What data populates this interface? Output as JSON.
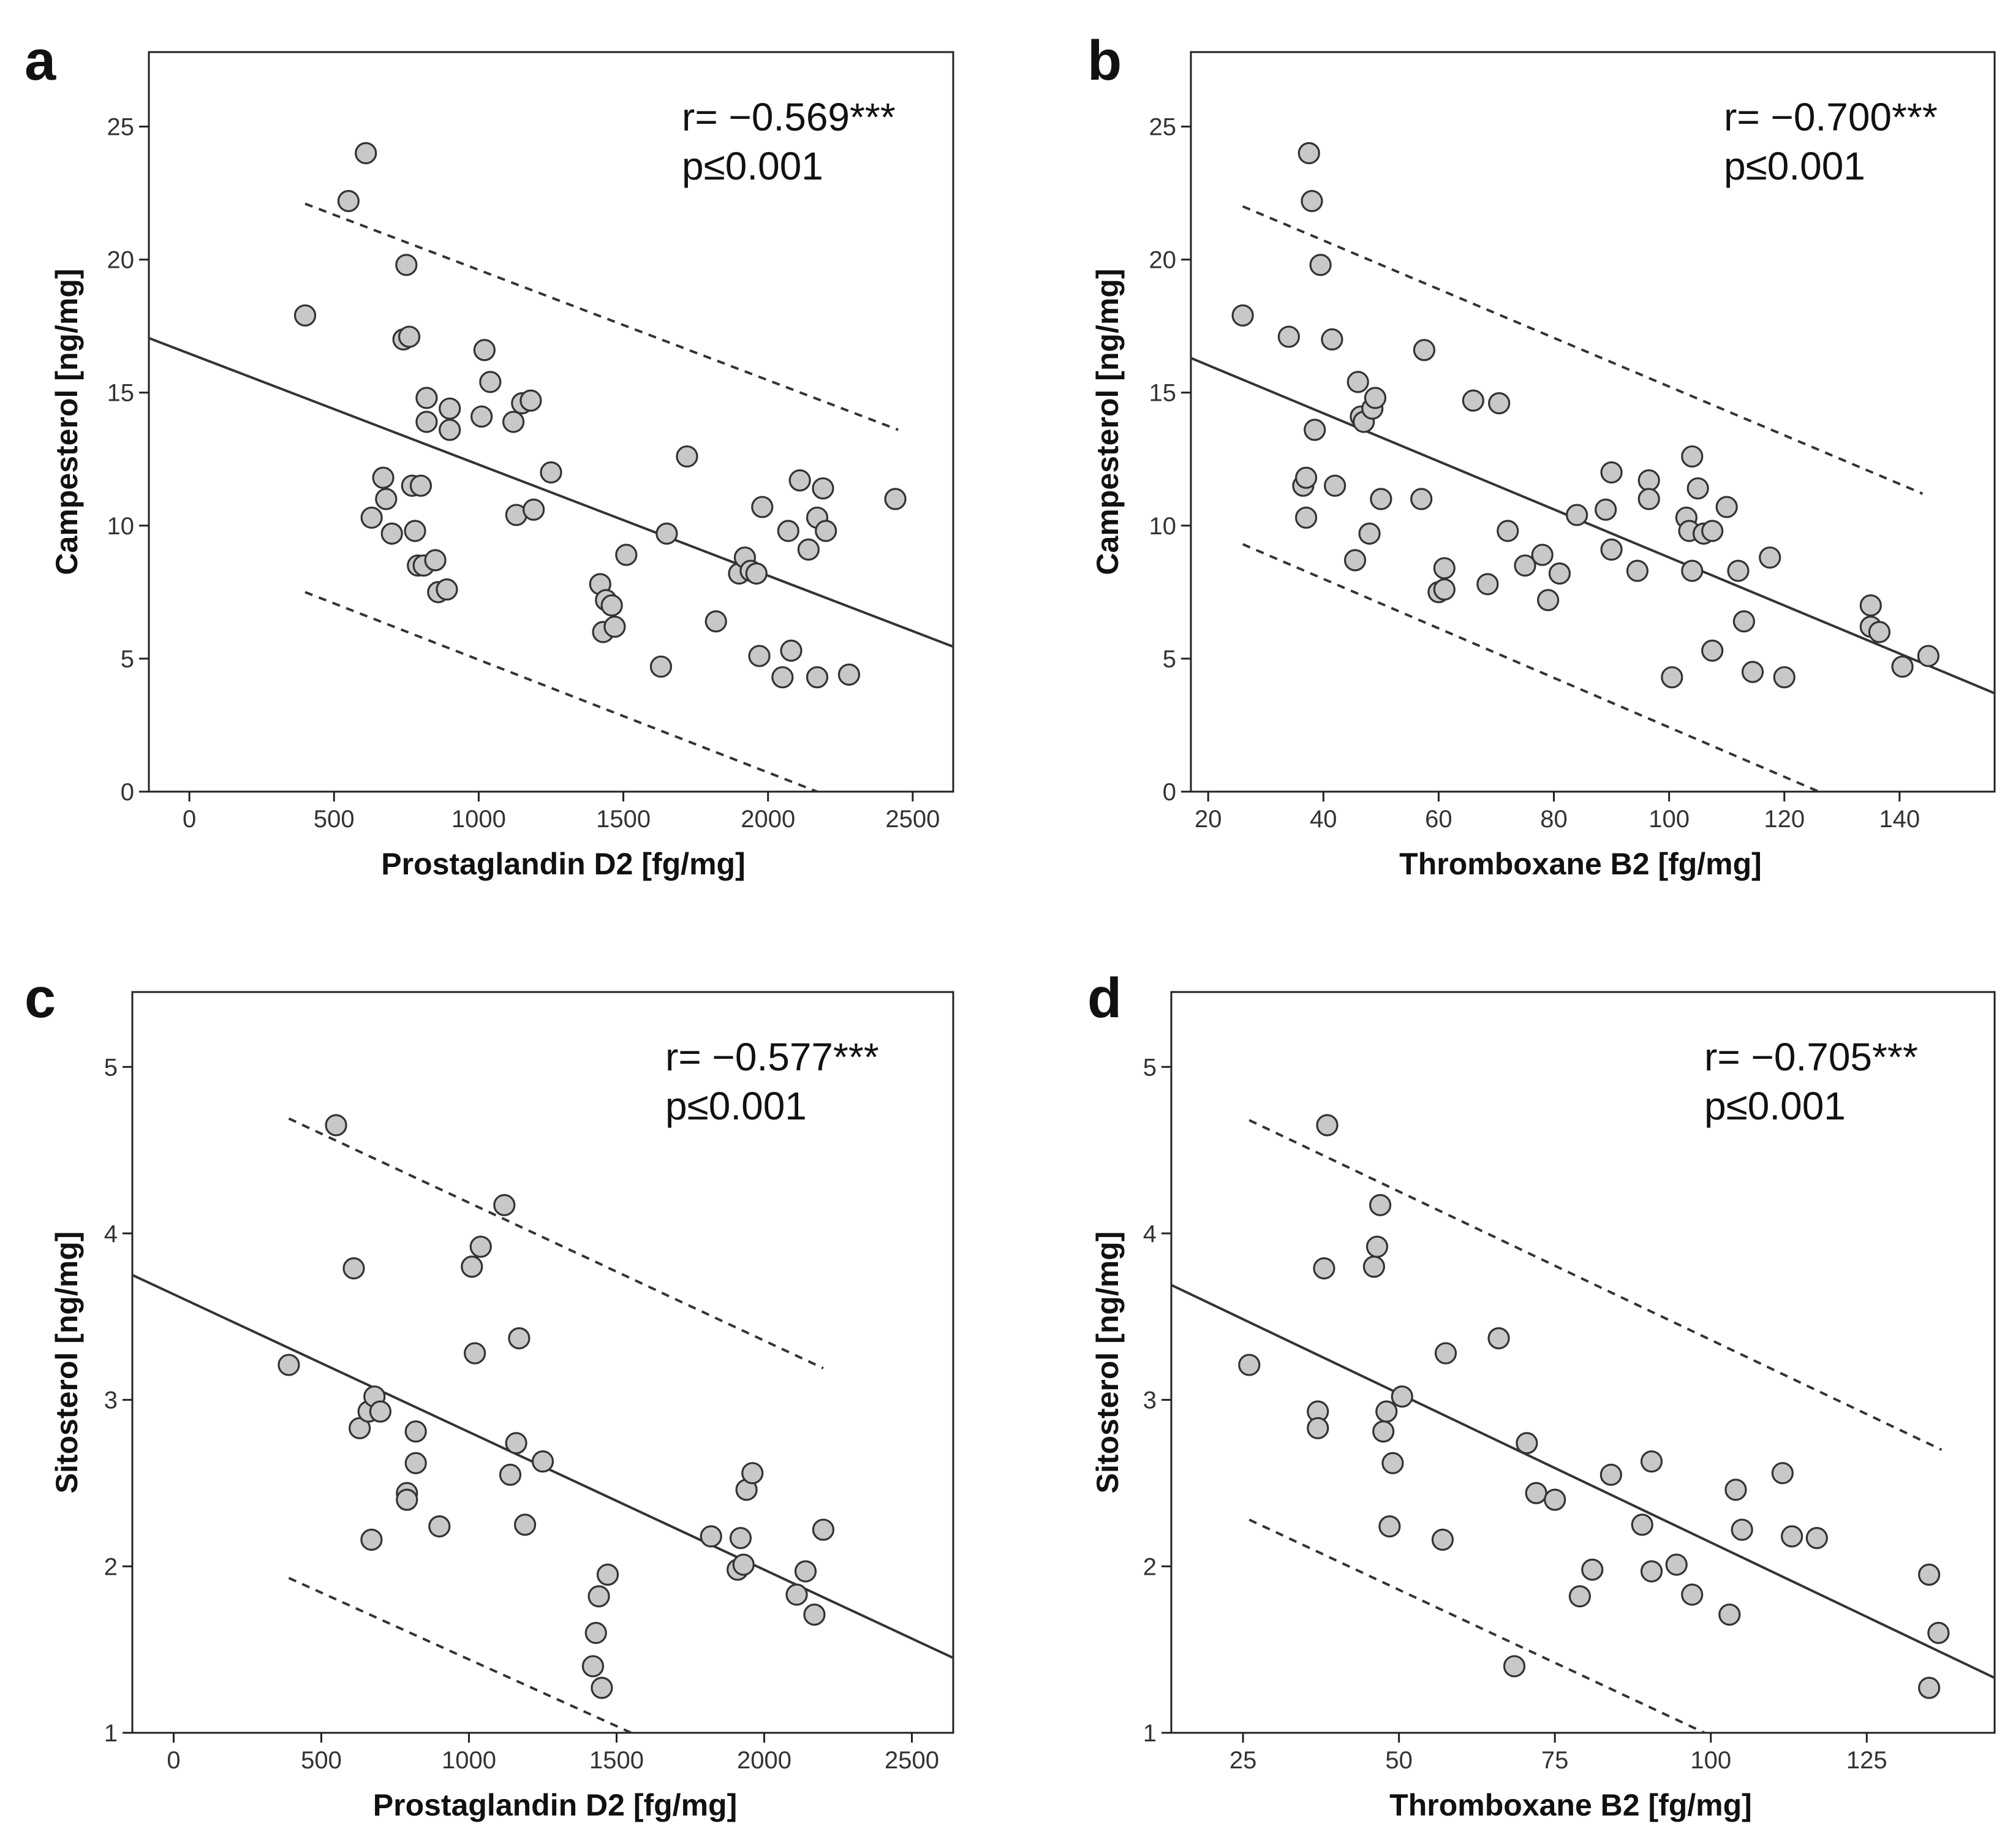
{
  "colors": {
    "point_fill": "#c8c8c8",
    "point_stroke": "#333333",
    "line": "#333333",
    "text": "#111111"
  },
  "chart_data": [
    {
      "panel": "a",
      "type": "scatter",
      "r_text": "r= −0.569***",
      "p_text": "p≤0.001",
      "xlabel": "Prostaglandin D2 [fg/mg]",
      "ylabel": "Campesterol [ng/mg]",
      "xlim": [
        -140,
        2640
      ],
      "ylim": [
        0,
        27.8
      ],
      "xticks": [
        0,
        500,
        1000,
        1500,
        2000,
        2500
      ],
      "yticks": [
        0,
        5,
        10,
        15,
        20,
        25
      ],
      "fit_line": [
        [
          -140,
          17.05
        ],
        [
          2640,
          5.45
        ]
      ],
      "upper_band": [
        [
          400,
          22.1
        ],
        [
          2450,
          13.6
        ]
      ],
      "lower_band": [
        [
          400,
          7.5
        ],
        [
          2170,
          0
        ]
      ],
      "points": [
        [
          400,
          17.9
        ],
        [
          550,
          22.2
        ],
        [
          610,
          24.0
        ],
        [
          630,
          10.3
        ],
        [
          670,
          11.8
        ],
        [
          680,
          11.0
        ],
        [
          700,
          9.7
        ],
        [
          740,
          17.0
        ],
        [
          750,
          19.8
        ],
        [
          760,
          17.1
        ],
        [
          770,
          11.5
        ],
        [
          780,
          9.8
        ],
        [
          790,
          8.5
        ],
        [
          800,
          11.5
        ],
        [
          810,
          8.5
        ],
        [
          820,
          14.8
        ],
        [
          820,
          13.9
        ],
        [
          850,
          8.7
        ],
        [
          860,
          7.5
        ],
        [
          890,
          7.6
        ],
        [
          900,
          14.4
        ],
        [
          900,
          13.6
        ],
        [
          1010,
          14.1
        ],
        [
          1020,
          16.6
        ],
        [
          1040,
          15.4
        ],
        [
          1120,
          13.9
        ],
        [
          1130,
          10.4
        ],
        [
          1150,
          14.6
        ],
        [
          1180,
          14.7
        ],
        [
          1190,
          10.6
        ],
        [
          1250,
          12.0
        ],
        [
          1420,
          7.8
        ],
        [
          1430,
          6.0
        ],
        [
          1440,
          7.2
        ],
        [
          1460,
          7.0
        ],
        [
          1470,
          6.2
        ],
        [
          1510,
          8.9
        ],
        [
          1630,
          4.7
        ],
        [
          1650,
          9.7
        ],
        [
          1720,
          12.6
        ],
        [
          1820,
          6.4
        ],
        [
          1900,
          8.2
        ],
        [
          1920,
          8.8
        ],
        [
          1940,
          8.3
        ],
        [
          1960,
          8.2
        ],
        [
          1970,
          5.1
        ],
        [
          1980,
          10.7
        ],
        [
          2050,
          4.3
        ],
        [
          2070,
          9.8
        ],
        [
          2080,
          5.3
        ],
        [
          2110,
          11.7
        ],
        [
          2140,
          9.1
        ],
        [
          2170,
          10.3
        ],
        [
          2170,
          4.3
        ],
        [
          2190,
          11.4
        ],
        [
          2200,
          9.8
        ],
        [
          2280,
          4.4
        ],
        [
          2440,
          11.0
        ]
      ]
    },
    {
      "panel": "b",
      "type": "scatter",
      "r_text": "r= −0.700***",
      "p_text": "p≤0.001",
      "xlabel": "Thromboxane B2 [fg/mg]",
      "ylabel": "Campesterol [ng/mg]",
      "xlim": [
        17,
        156.5
      ],
      "ylim": [
        0,
        27.8
      ],
      "xticks": [
        20,
        40,
        60,
        80,
        100,
        120,
        140
      ],
      "yticks": [
        0,
        5,
        10,
        15,
        20,
        25
      ],
      "fit_line": [
        [
          17,
          16.3
        ],
        [
          156.5,
          3.7
        ]
      ],
      "upper_band": [
        [
          26,
          22.0
        ],
        [
          144,
          11.2
        ]
      ],
      "lower_band": [
        [
          26,
          9.3
        ],
        [
          126,
          0
        ]
      ],
      "points": [
        [
          26,
          17.9
        ],
        [
          34,
          17.1
        ],
        [
          36.5,
          11.5
        ],
        [
          37,
          10.3
        ],
        [
          37,
          11.8
        ],
        [
          37.5,
          24.0
        ],
        [
          38,
          22.2
        ],
        [
          38.5,
          13.6
        ],
        [
          39.5,
          19.8
        ],
        [
          41.5,
          17.0
        ],
        [
          42,
          11.5
        ],
        [
          45.5,
          8.7
        ],
        [
          46,
          15.4
        ],
        [
          46.5,
          14.1
        ],
        [
          47,
          13.9
        ],
        [
          48,
          9.7
        ],
        [
          48.5,
          14.4
        ],
        [
          49,
          14.8
        ],
        [
          50,
          11.0
        ],
        [
          57,
          11.0
        ],
        [
          57.5,
          16.6
        ],
        [
          60,
          7.5
        ],
        [
          61,
          8.4
        ],
        [
          61,
          7.6
        ],
        [
          66,
          14.7
        ],
        [
          68.5,
          7.8
        ],
        [
          70.5,
          14.6
        ],
        [
          72,
          9.8
        ],
        [
          75,
          8.5
        ],
        [
          78,
          8.9
        ],
        [
          79,
          7.2
        ],
        [
          81,
          8.2
        ],
        [
          84,
          10.4
        ],
        [
          89,
          10.6
        ],
        [
          90,
          12.0
        ],
        [
          90,
          9.1
        ],
        [
          94.5,
          8.3
        ],
        [
          96.5,
          11.7
        ],
        [
          96.5,
          11.0
        ],
        [
          100.5,
          4.3
        ],
        [
          103,
          10.3
        ],
        [
          103.5,
          9.8
        ],
        [
          104,
          12.6
        ],
        [
          104,
          8.3
        ],
        [
          105,
          11.4
        ],
        [
          106,
          9.7
        ],
        [
          107.5,
          9.8
        ],
        [
          107.5,
          5.3
        ],
        [
          110,
          10.7
        ],
        [
          112,
          8.3
        ],
        [
          113,
          6.4
        ],
        [
          114.5,
          4.5
        ],
        [
          117.5,
          8.8
        ],
        [
          120,
          4.3
        ],
        [
          135,
          7.0
        ],
        [
          135,
          6.2
        ],
        [
          136.5,
          6.0
        ],
        [
          140.5,
          4.7
        ],
        [
          145,
          5.1
        ]
      ]
    },
    {
      "panel": "c",
      "type": "scatter",
      "r_text": "r= −0.577***",
      "p_text": "p≤0.001",
      "xlabel": "Prostaglandin D2 [fg/mg]",
      "ylabel": "Sitosterol [ng/mg]",
      "xlim": [
        -140,
        2640
      ],
      "ylim": [
        1,
        5.45
      ],
      "xticks": [
        0,
        500,
        1000,
        1500,
        2000,
        2500
      ],
      "yticks": [
        1,
        2,
        3,
        4,
        5
      ],
      "fit_line": [
        [
          -140,
          3.75
        ],
        [
          2640,
          1.45
        ]
      ],
      "upper_band": [
        [
          390,
          4.69
        ],
        [
          2200,
          3.19
        ]
      ],
      "lower_band": [
        [
          390,
          1.93
        ],
        [
          1550,
          1
        ]
      ],
      "points": [
        [
          390,
          3.21
        ],
        [
          550,
          4.65
        ],
        [
          610,
          3.79
        ],
        [
          630,
          2.83
        ],
        [
          660,
          2.93
        ],
        [
          670,
          2.16
        ],
        [
          680,
          3.02
        ],
        [
          700,
          2.93
        ],
        [
          790,
          2.44
        ],
        [
          790,
          2.4
        ],
        [
          820,
          2.81
        ],
        [
          820,
          2.62
        ],
        [
          900,
          2.24
        ],
        [
          1010,
          3.8
        ],
        [
          1020,
          3.28
        ],
        [
          1040,
          3.92
        ],
        [
          1120,
          4.17
        ],
        [
          1140,
          2.55
        ],
        [
          1160,
          2.74
        ],
        [
          1170,
          3.37
        ],
        [
          1190,
          2.25
        ],
        [
          1250,
          2.63
        ],
        [
          1420,
          1.4
        ],
        [
          1430,
          1.6
        ],
        [
          1440,
          1.82
        ],
        [
          1450,
          1.27
        ],
        [
          1470,
          1.95
        ],
        [
          1820,
          2.18
        ],
        [
          1910,
          1.98
        ],
        [
          1920,
          2.17
        ],
        [
          1930,
          2.01
        ],
        [
          1940,
          2.46
        ],
        [
          1960,
          2.56
        ],
        [
          2110,
          1.83
        ],
        [
          2140,
          1.97
        ],
        [
          2170,
          1.71
        ],
        [
          2200,
          2.22
        ]
      ]
    },
    {
      "panel": "d",
      "type": "scatter",
      "r_text": "r= −0.705***",
      "p_text": "p≤0.001",
      "xlabel": "Thromboxane B2 [fg/mg]",
      "ylabel": "Sitosterol [ng/mg]",
      "xlim": [
        13.5,
        145.5
      ],
      "ylim": [
        1,
        5.45
      ],
      "xticks": [
        25,
        50,
        75,
        100,
        125
      ],
      "yticks": [
        1,
        2,
        3,
        4,
        5
      ],
      "fit_line": [
        [
          13.5,
          3.69
        ],
        [
          145.5,
          1.33
        ]
      ],
      "upper_band": [
        [
          26,
          4.68
        ],
        [
          137,
          2.7
        ]
      ],
      "lower_band": [
        [
          26,
          2.28
        ],
        [
          99,
          1
        ]
      ],
      "points": [
        [
          26,
          3.21
        ],
        [
          37,
          2.93
        ],
        [
          37,
          2.83
        ],
        [
          38,
          3.79
        ],
        [
          38.5,
          4.65
        ],
        [
          46,
          3.8
        ],
        [
          46.5,
          3.92
        ],
        [
          47,
          4.17
        ],
        [
          47.5,
          2.81
        ],
        [
          48,
          2.93
        ],
        [
          48.5,
          2.24
        ],
        [
          49,
          2.62
        ],
        [
          50.5,
          3.02
        ],
        [
          57,
          2.16
        ],
        [
          57.5,
          3.28
        ],
        [
          66,
          3.37
        ],
        [
          70.5,
          2.74
        ],
        [
          72,
          2.44
        ],
        [
          75,
          2.4
        ],
        [
          68.5,
          1.4
        ],
        [
          79,
          1.82
        ],
        [
          81,
          1.98
        ],
        [
          84,
          2.55
        ],
        [
          89,
          2.25
        ],
        [
          90.5,
          2.63
        ],
        [
          90.5,
          1.97
        ],
        [
          94.5,
          2.01
        ],
        [
          97,
          1.83
        ],
        [
          103,
          1.71
        ],
        [
          104,
          2.46
        ],
        [
          105,
          2.22
        ],
        [
          111.5,
          2.56
        ],
        [
          113,
          2.18
        ],
        [
          117,
          2.17
        ],
        [
          135,
          1.95
        ],
        [
          136.5,
          1.6
        ],
        [
          135,
          1.27
        ]
      ]
    }
  ]
}
